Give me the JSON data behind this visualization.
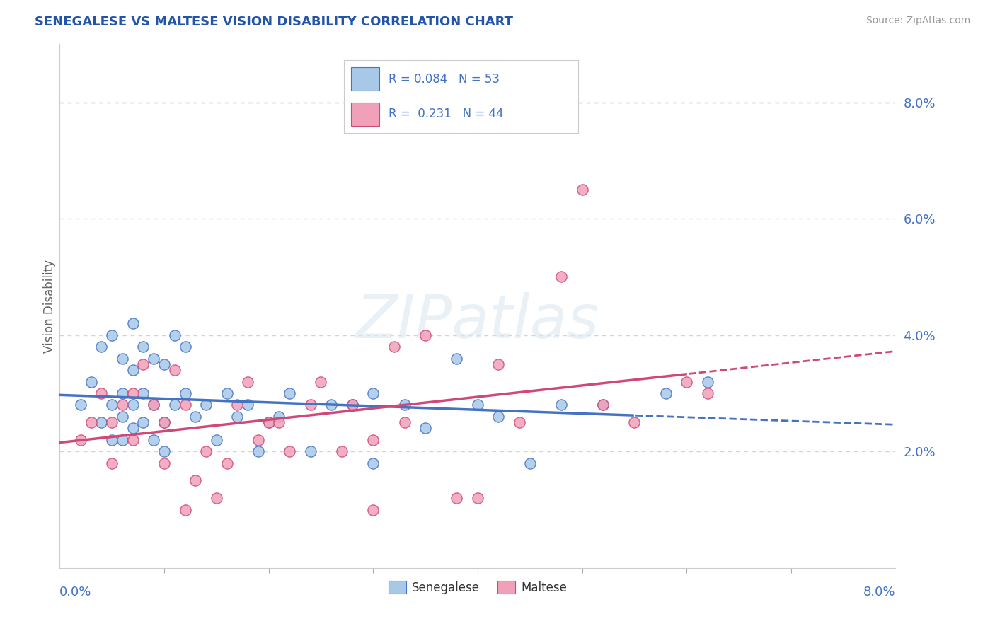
{
  "title": "SENEGALESE VS MALTESE VISION DISABILITY CORRELATION CHART",
  "source": "Source: ZipAtlas.com",
  "ylabel": "Vision Disability",
  "xlim": [
    0.0,
    0.08
  ],
  "ylim": [
    0.0,
    0.09
  ],
  "yticks": [
    0.02,
    0.04,
    0.06,
    0.08
  ],
  "ytick_labels": [
    "2.0%",
    "4.0%",
    "6.0%",
    "8.0%"
  ],
  "senegalese_color": "#a8c8e8",
  "maltese_color": "#f0a0b8",
  "line1_color": "#4472c4",
  "line2_color": "#d04878",
  "background_color": "#ffffff",
  "grid_color": "#c8d4e8",
  "senegalese_x": [
    0.002,
    0.003,
    0.004,
    0.004,
    0.005,
    0.005,
    0.005,
    0.006,
    0.006,
    0.006,
    0.006,
    0.007,
    0.007,
    0.007,
    0.007,
    0.008,
    0.008,
    0.008,
    0.009,
    0.009,
    0.009,
    0.01,
    0.01,
    0.01,
    0.011,
    0.011,
    0.012,
    0.012,
    0.013,
    0.014,
    0.015,
    0.016,
    0.017,
    0.018,
    0.019,
    0.02,
    0.021,
    0.022,
    0.024,
    0.026,
    0.028,
    0.03,
    0.033,
    0.038,
    0.04,
    0.042,
    0.048,
    0.052,
    0.058,
    0.062,
    0.03,
    0.035,
    0.045
  ],
  "senegalese_y": [
    0.028,
    0.032,
    0.038,
    0.025,
    0.04,
    0.028,
    0.022,
    0.036,
    0.03,
    0.026,
    0.022,
    0.042,
    0.034,
    0.028,
    0.024,
    0.038,
    0.03,
    0.025,
    0.036,
    0.028,
    0.022,
    0.035,
    0.025,
    0.02,
    0.04,
    0.028,
    0.038,
    0.03,
    0.026,
    0.028,
    0.022,
    0.03,
    0.026,
    0.028,
    0.02,
    0.025,
    0.026,
    0.03,
    0.02,
    0.028,
    0.028,
    0.03,
    0.028,
    0.036,
    0.028,
    0.026,
    0.028,
    0.028,
    0.03,
    0.032,
    0.018,
    0.024,
    0.018
  ],
  "maltese_x": [
    0.002,
    0.003,
    0.004,
    0.005,
    0.005,
    0.006,
    0.007,
    0.007,
    0.008,
    0.009,
    0.01,
    0.01,
    0.011,
    0.012,
    0.013,
    0.014,
    0.015,
    0.016,
    0.017,
    0.018,
    0.019,
    0.02,
    0.021,
    0.022,
    0.024,
    0.025,
    0.027,
    0.028,
    0.03,
    0.032,
    0.033,
    0.035,
    0.038,
    0.04,
    0.042,
    0.044,
    0.048,
    0.05,
    0.052,
    0.055,
    0.06,
    0.062,
    0.03,
    0.012
  ],
  "maltese_y": [
    0.022,
    0.025,
    0.03,
    0.025,
    0.018,
    0.028,
    0.03,
    0.022,
    0.035,
    0.028,
    0.025,
    0.018,
    0.034,
    0.028,
    0.015,
    0.02,
    0.012,
    0.018,
    0.028,
    0.032,
    0.022,
    0.025,
    0.025,
    0.02,
    0.028,
    0.032,
    0.02,
    0.028,
    0.022,
    0.038,
    0.025,
    0.04,
    0.012,
    0.012,
    0.035,
    0.025,
    0.05,
    0.065,
    0.028,
    0.025,
    0.032,
    0.03,
    0.01,
    0.01
  ]
}
